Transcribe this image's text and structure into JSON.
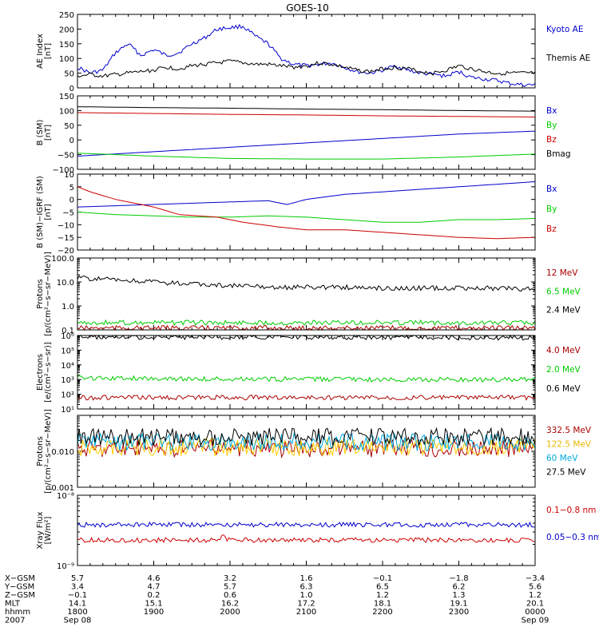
{
  "chart_data": {
    "type": "line",
    "title": "GOES-10",
    "panels": [
      {
        "id": "ae",
        "ylabel": [
          "AE Index",
          "[nT]"
        ],
        "scale": "linear",
        "ylim": [
          0,
          250
        ],
        "ticks": [
          0,
          50,
          100,
          150,
          200,
          250
        ],
        "tick_labels": [
          "0",
          "50",
          "100",
          "150",
          "200",
          "250"
        ],
        "series": [
          {
            "name": "Kyoto AE",
            "color": "#0000cc",
            "x": [
              1800,
              1810,
              1820,
              1830,
              1840,
              1850,
              1900,
              1910,
              1920,
              1930,
              1940,
              1950,
              2000,
              2010,
              2020,
              2030,
              2040,
              2050,
              2100,
              2110,
              2120,
              2130,
              2140,
              2150,
              2200,
              2210,
              2220,
              2230,
              2240,
              2250,
              2300,
              2310,
              2320,
              2330,
              2340,
              2350,
              2400
            ],
            "y": [
              70,
              50,
              60,
              120,
              150,
              110,
              130,
              110,
              120,
              150,
              170,
              200,
              205,
              210,
              175,
              150,
              100,
              80,
              75,
              80,
              85,
              70,
              55,
              50,
              60,
              75,
              60,
              50,
              45,
              40,
              55,
              35,
              30,
              25,
              15,
              10,
              10
            ]
          },
          {
            "name": "Themis AE",
            "color": "#000000",
            "x": [
              1800,
              1810,
              1820,
              1830,
              1840,
              1850,
              1900,
              1910,
              1920,
              1930,
              1940,
              1950,
              2000,
              2010,
              2020,
              2030,
              2040,
              2050,
              2100,
              2110,
              2120,
              2130,
              2140,
              2150,
              2200,
              2210,
              2220,
              2230,
              2240,
              2250,
              2300,
              2310,
              2320,
              2330,
              2340,
              2350,
              2400
            ],
            "y": [
              40,
              45,
              40,
              45,
              50,
              55,
              60,
              70,
              65,
              75,
              80,
              85,
              90,
              85,
              80,
              80,
              75,
              70,
              75,
              85,
              80,
              70,
              60,
              55,
              65,
              70,
              65,
              55,
              50,
              60,
              75,
              65,
              55,
              50,
              50,
              50,
              50
            ]
          }
        ]
      },
      {
        "id": "bfield",
        "ylabel": [
          "B (SM)",
          "[nT]"
        ],
        "scale": "linear",
        "ylim": [
          -100,
          150
        ],
        "ticks": [
          -100,
          -50,
          0,
          50,
          100,
          150
        ],
        "tick_labels": [
          "−100",
          "−50",
          "0",
          "50",
          "100",
          "150"
        ],
        "series": [
          {
            "name": "Bx",
            "color": "#0000cc",
            "x": [
              1800,
              1900,
              2000,
              2100,
              2200,
              2300,
              2400
            ],
            "y": [
              -55,
              -40,
              -25,
              -10,
              5,
              20,
              30
            ]
          },
          {
            "name": "By",
            "color": "#00cc00",
            "x": [
              1800,
              1900,
              2000,
              2100,
              2200,
              2300,
              2400
            ],
            "y": [
              -45,
              -55,
              -63,
              -65,
              -65,
              -58,
              -48
            ]
          },
          {
            "name": "Bz",
            "color": "#cc0000",
            "x": [
              1800,
              1900,
              2000,
              2100,
              2200,
              2300,
              2400
            ],
            "y": [
              93,
              90,
              87,
              85,
              82,
              80,
              78
            ]
          },
          {
            "name": "Bmag",
            "color": "#000000",
            "x": [
              1800,
              1900,
              2000,
              2100,
              2200,
              2300,
              2400
            ],
            "y": [
              113,
              110,
              108,
              105,
              103,
              100,
              98
            ]
          }
        ]
      },
      {
        "id": "dbfield",
        "ylabel": [
          "B (SM)−IGRF (SM)",
          "[nT]"
        ],
        "scale": "linear",
        "ylim": [
          -20,
          10
        ],
        "ticks": [
          -20,
          -15,
          -10,
          -5,
          0,
          5,
          10
        ],
        "tick_labels": [
          "−20",
          "−15",
          "−10",
          "−5",
          "0",
          "5",
          "10"
        ],
        "series": [
          {
            "name": "Bx",
            "color": "#0000cc",
            "x": [
              1800,
              1830,
              1900,
              1930,
              2000,
              2030,
              2045,
              2100,
              2130,
              2200,
              2230,
              2300,
              2330,
              2400
            ],
            "y": [
              -3,
              -2.5,
              -2,
              -1.5,
              -1,
              -0.5,
              -2,
              0,
              2,
              3,
              4,
              5,
              6,
              7
            ]
          },
          {
            "name": "By",
            "color": "#00cc00",
            "x": [
              1800,
              1830,
              1900,
              1930,
              2000,
              2030,
              2100,
              2130,
              2200,
              2230,
              2300,
              2330,
              2400
            ],
            "y": [
              -5,
              -6,
              -6.5,
              -7,
              -7,
              -6.5,
              -7,
              -8,
              -9,
              -9,
              -8,
              -8,
              -7.5
            ]
          },
          {
            "name": "Bz",
            "color": "#cc0000",
            "x": [
              1800,
              1810,
              1830,
              1850,
              1900,
              1920,
              1950,
              2010,
              2040,
              2100,
              2130,
              2200,
              2230,
              2300,
              2330,
              2400
            ],
            "y": [
              5,
              3,
              0,
              -2,
              -3,
              -6,
              -7,
              -9,
              -11,
              -12,
              -12,
              -13,
              -14,
              -15,
              -15.5,
              -15
            ]
          }
        ]
      },
      {
        "id": "protons_hi",
        "ylabel": [
          "Protons",
          "[p/(cm²−s−sr−MeV)]"
        ],
        "scale": "log",
        "ylim": [
          0.1,
          100
        ],
        "ticks": [
          0.1,
          1,
          10,
          100
        ],
        "tick_labels": [
          "0.1",
          "1.0",
          "10.0",
          "100.0"
        ],
        "series": [
          {
            "name": "12 MeV",
            "color": "#aa0000",
            "x": [
              1800,
              2400
            ],
            "y": [
              0.12,
              0.12
            ]
          },
          {
            "name": "6.5 MeV",
            "color": "#00cc00",
            "x": [
              1800,
              2400
            ],
            "y": [
              0.2,
              0.2
            ]
          },
          {
            "name": "2.4 MeV",
            "color": "#000000",
            "x": [
              1800,
              1830,
              1900,
              1930,
              2000,
              2030,
              2100,
              2130,
              2200,
              2230,
              2300,
              2330,
              2400
            ],
            "y": [
              15,
              12,
              10,
              8,
              7,
              6,
              6,
              6,
              5.5,
              5.5,
              5.5,
              5.5,
              5
            ]
          }
        ]
      },
      {
        "id": "electrons",
        "ylabel": [
          "Electrons",
          "[e/(cm²−s−sr)]"
        ],
        "scale": "log",
        "ylim": [
          10,
          1000000
        ],
        "ticks": [
          10,
          100,
          1000,
          10000,
          100000,
          1000000
        ],
        "tick_labels": [
          "10¹",
          "10²",
          "10³",
          "10⁴",
          "10⁵",
          "10⁶"
        ],
        "series": [
          {
            "name": "4.0 MeV",
            "color": "#aa0000",
            "x": [
              1800,
              2400
            ],
            "y": [
              60,
              60
            ]
          },
          {
            "name": "2.0 MeV",
            "color": "#00cc00",
            "x": [
              1800,
              1900,
              2000,
              2100,
              2200,
              2300,
              2400
            ],
            "y": [
              1300,
              1200,
              1100,
              1050,
              1000,
              1000,
              1000
            ]
          },
          {
            "name": "0.6 MeV",
            "color": "#000000",
            "x": [
              1800,
              1900,
              2000,
              2100,
              2200,
              2300,
              2400
            ],
            "y": [
              800000,
              780000,
              760000,
              750000,
              740000,
              720000,
              700000
            ]
          }
        ]
      },
      {
        "id": "protons_lo",
        "ylabel": [
          "Protons",
          "[p/(cm²−s−sr−MeV)]"
        ],
        "scale": "log",
        "ylim": [
          0.001,
          0.1
        ],
        "ticks": [
          0.001,
          0.01,
          0.1
        ],
        "tick_labels": [
          "0.001",
          "0.010",
          ""
        ],
        "series": [
          {
            "name": "332.5 MeV",
            "color": "#aa0000",
            "x": [
              1800,
              2400
            ],
            "y": [
              0.012,
              0.012
            ]
          },
          {
            "name": "122.5 MeV",
            "color": "#ffcc00",
            "x": [
              1800,
              2400
            ],
            "y": [
              0.013,
              0.013
            ]
          },
          {
            "name": "60 MeV",
            "color": "#00aadd",
            "x": [
              1800,
              2400
            ],
            "y": [
              0.018,
              0.018
            ]
          },
          {
            "name": "27.5 MeV",
            "color": "#000000",
            "x": [
              1800,
              2400
            ],
            "y": [
              0.025,
              0.025
            ]
          }
        ]
      },
      {
        "id": "xray",
        "ylabel": [
          "Xray Flux",
          "[W/m²]"
        ],
        "scale": "log",
        "ylim": [
          1e-09,
          1e-08
        ],
        "ticks": [
          1e-09,
          1e-08
        ],
        "tick_labels": [
          "10⁻⁹",
          "10⁻⁸"
        ],
        "series": [
          {
            "name": "0.1−0.8 nm",
            "color": "#cc0000",
            "x": [
              1800,
              1950,
              1955,
              1958,
              2400
            ],
            "y": [
              2.3e-09,
              2.3e-09,
              2.6e-09,
              2.3e-09,
              2.3e-09
            ]
          },
          {
            "name": "0.05−0.3 nm",
            "color": "#0000cc",
            "x": [
              1800,
              2400
            ],
            "y": [
              3.8e-09,
              3.8e-09
            ]
          }
        ]
      }
    ],
    "ephemeris": {
      "labels": [
        "X−GSM",
        "Y−GSM",
        "Z−GSM",
        "MLT",
        "hhmm",
        "2007"
      ],
      "columns": [
        [
          "5.7",
          "3.4",
          "−0.1",
          "14.1",
          "1800",
          "Sep 08"
        ],
        [
          "4.6",
          "4.7",
          "0.2",
          "15.1",
          "1900",
          ""
        ],
        [
          "3.2",
          "5.7",
          "0.6",
          "16.2",
          "2000",
          ""
        ],
        [
          "1.6",
          "6.3",
          "1.0",
          "17.2",
          "2100",
          ""
        ],
        [
          "−0.1",
          "6.5",
          "1.2",
          "18.1",
          "2200",
          ""
        ],
        [
          "−1.8",
          "6.2",
          "1.3",
          "19.1",
          "2300",
          ""
        ],
        [
          "−3.4",
          "5.6",
          "1.2",
          "20.1",
          "0000",
          "Sep 09"
        ]
      ]
    }
  }
}
